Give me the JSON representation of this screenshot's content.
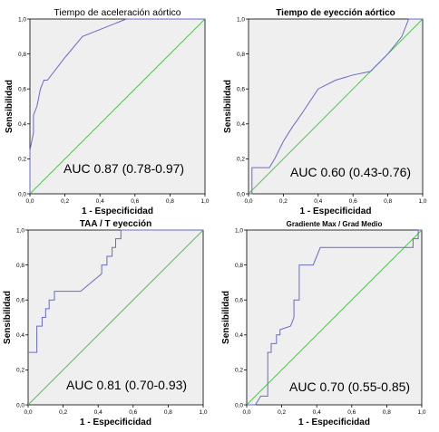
{
  "chart_data": [
    {
      "type": "line",
      "title": "Tiempo de aceleración aórtico",
      "xlabel": "1 - Especificidad",
      "ylabel": "Sensibilidad",
      "annotation": "AUC 0.87 (0.78-0.97)",
      "xlim": [
        0,
        1
      ],
      "ylim": [
        0,
        1
      ],
      "xticks": [
        "0,0",
        "0,2",
        "0,4",
        "0,6",
        "0,8",
        "1,0"
      ],
      "yticks": [
        "0,0",
        "0,2",
        "0,4",
        "0,6",
        "0,8",
        "1,0"
      ],
      "colors": {
        "roc": "#6a6ac6",
        "reference": "#52c452"
      },
      "series": [
        {
          "x": [
            0,
            0,
            0.02,
            0.02,
            0.04,
            0.06,
            0.08,
            0.1,
            0.2,
            0.3,
            0.5,
            0.55,
            0.95,
            1
          ],
          "y": [
            0,
            0.25,
            0.35,
            0.45,
            0.5,
            0.6,
            0.65,
            0.65,
            0.78,
            0.9,
            0.98,
            1,
            1,
            1
          ]
        },
        {
          "x": [
            0,
            1
          ],
          "y": [
            0,
            1
          ]
        }
      ]
    },
    {
      "type": "line",
      "title": "Tiempo de eyección aórtico",
      "xlabel": "1 - Especificidad",
      "ylabel": "Sensibilidad",
      "annotation": "AUC 0.60 (0.43-0.76)",
      "xlim": [
        0,
        1
      ],
      "ylim": [
        0,
        1
      ],
      "xticks": [
        "0,0",
        "0,2",
        "0,4",
        "0,6",
        "0,8",
        "1,0"
      ],
      "yticks": [
        "0,0",
        "0,2",
        "0,4",
        "0,6",
        "0,8",
        "1,0"
      ],
      "colors": {
        "roc": "#6a6ac6",
        "reference": "#52c452"
      },
      "series": [
        {
          "x": [
            0,
            0.02,
            0.02,
            0.12,
            0.15,
            0.2,
            0.25,
            0.3,
            0.4,
            0.5,
            0.6,
            0.7,
            0.8,
            0.88,
            0.92,
            1
          ],
          "y": [
            0,
            0,
            0.15,
            0.15,
            0.2,
            0.3,
            0.38,
            0.45,
            0.6,
            0.65,
            0.68,
            0.7,
            0.8,
            0.9,
            1,
            1
          ]
        },
        {
          "x": [
            0,
            1
          ],
          "y": [
            0,
            1
          ]
        }
      ]
    },
    {
      "type": "line",
      "title": "TAA / T eyección",
      "xlabel": "1 - Especificidad",
      "ylabel": "Sensibilidad",
      "annotation": "AUC 0.81 (0.70-0.93)",
      "xlim": [
        0,
        1
      ],
      "ylim": [
        0,
        1
      ],
      "xticks": [
        "0,0",
        "0,2",
        "0,4",
        "0,6",
        "0,8",
        "1,0"
      ],
      "yticks": [
        "0,0",
        "0,2",
        "0,4",
        "0,6",
        "0,8",
        "1,0"
      ],
      "colors": {
        "roc": "#6a6ac6",
        "reference": "#52c452"
      },
      "series": [
        {
          "x": [
            0,
            0.05,
            0.05,
            0.08,
            0.08,
            0.1,
            0.1,
            0.12,
            0.12,
            0.15,
            0.15,
            0.3,
            0.42,
            0.42,
            0.45,
            0.45,
            0.48,
            0.48,
            0.5,
            0.5,
            0.53,
            0.53,
            0.6,
            1
          ],
          "y": [
            0.3,
            0.3,
            0.45,
            0.45,
            0.5,
            0.5,
            0.55,
            0.55,
            0.6,
            0.6,
            0.65,
            0.65,
            0.75,
            0.8,
            0.8,
            0.85,
            0.85,
            0.9,
            0.9,
            0.95,
            0.95,
            1,
            1,
            1
          ]
        },
        {
          "x": [
            0,
            1
          ],
          "y": [
            0,
            1
          ]
        }
      ]
    },
    {
      "type": "line",
      "title": "Gradiente Max / Grad Medio",
      "xlabel": "1 - Especificidad",
      "ylabel": "Sensibilidad",
      "annotation": "AUC 0.70 (0.55-0.85)",
      "xlim": [
        0,
        1
      ],
      "ylim": [
        0,
        1
      ],
      "xticks": [
        "0,0",
        "0,2",
        "0,4",
        "0,6",
        "0,8",
        "1,0"
      ],
      "yticks": [
        "0,0",
        "0,2",
        "0,4",
        "0,6",
        "0,8",
        "1,0"
      ],
      "colors": {
        "roc": "#6a6ac6",
        "reference": "#52c452"
      },
      "series": [
        {
          "x": [
            0,
            0.05,
            0.08,
            0.08,
            0.12,
            0.12,
            0.14,
            0.14,
            0.17,
            0.17,
            0.19,
            0.19,
            0.25,
            0.27,
            0.27,
            0.3,
            0.3,
            0.32,
            0.32,
            0.38,
            0.42,
            0.62,
            0.95,
            0.95,
            0.98,
            0.98,
            1
          ],
          "y": [
            0,
            0,
            0.05,
            0.05,
            0.05,
            0.3,
            0.3,
            0.35,
            0.35,
            0.4,
            0.4,
            0.43,
            0.45,
            0.5,
            0.6,
            0.6,
            0.8,
            0.8,
            0.8,
            0.8,
            0.9,
            0.9,
            0.9,
            0.95,
            0.95,
            1,
            1
          ]
        },
        {
          "x": [
            0,
            1
          ],
          "y": [
            0,
            1
          ]
        }
      ]
    }
  ]
}
